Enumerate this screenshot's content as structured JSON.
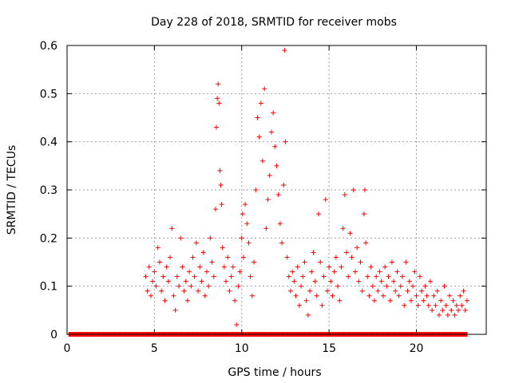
{
  "chart_data": {
    "type": "scatter",
    "title": "Day 228 of 2018, SRMTID for receiver mobs",
    "xlabel": "GPS time / hours",
    "ylabel": "SRMTID / TECUs",
    "xlim": [
      0,
      24
    ],
    "ylim": [
      0,
      0.6
    ],
    "x_ticks": [
      0,
      5,
      10,
      15,
      20
    ],
    "y_ticks": [
      0,
      0.1,
      0.2,
      0.3,
      0.4,
      0.5,
      0.6
    ],
    "x_tick_labels": [
      "0",
      "5",
      "10",
      "15",
      "20"
    ],
    "y_tick_labels": [
      "0",
      "0.1",
      "0.2",
      "0.3",
      "0.4",
      "0.5",
      "0.6"
    ],
    "grid": true,
    "marker": "+",
    "color": "#ff0000",
    "zero_band_x": [
      0.1,
      22.9
    ],
    "series": [
      {
        "name": "mobs",
        "points": [
          [
            4.5,
            0.12
          ],
          [
            4.6,
            0.09
          ],
          [
            4.7,
            0.14
          ],
          [
            4.8,
            0.08
          ],
          [
            4.9,
            0.11
          ],
          [
            5.0,
            0.13
          ],
          [
            5.1,
            0.1
          ],
          [
            5.2,
            0.18
          ],
          [
            5.3,
            0.15
          ],
          [
            5.4,
            0.09
          ],
          [
            5.5,
            0.12
          ],
          [
            5.6,
            0.07
          ],
          [
            5.7,
            0.14
          ],
          [
            5.8,
            0.11
          ],
          [
            5.9,
            0.16
          ],
          [
            6.0,
            0.22
          ],
          [
            6.1,
            0.08
          ],
          [
            6.2,
            0.05
          ],
          [
            6.3,
            0.12
          ],
          [
            6.4,
            0.1
          ],
          [
            6.5,
            0.2
          ],
          [
            6.6,
            0.14
          ],
          [
            6.7,
            0.09
          ],
          [
            6.8,
            0.11
          ],
          [
            6.9,
            0.07
          ],
          [
            7.0,
            0.13
          ],
          [
            7.1,
            0.1
          ],
          [
            7.2,
            0.16
          ],
          [
            7.3,
            0.12
          ],
          [
            7.4,
            0.19
          ],
          [
            7.5,
            0.09
          ],
          [
            7.6,
            0.14
          ],
          [
            7.7,
            0.11
          ],
          [
            7.8,
            0.17
          ],
          [
            7.9,
            0.08
          ],
          [
            8.0,
            0.13
          ],
          [
            8.1,
            0.1
          ],
          [
            8.2,
            0.2
          ],
          [
            8.3,
            0.15
          ],
          [
            8.4,
            0.12
          ],
          [
            8.5,
            0.26
          ],
          [
            8.55,
            0.43
          ],
          [
            8.6,
            0.49
          ],
          [
            8.65,
            0.52
          ],
          [
            8.7,
            0.48
          ],
          [
            8.75,
            0.34
          ],
          [
            8.8,
            0.31
          ],
          [
            8.85,
            0.27
          ],
          [
            8.9,
            0.18
          ],
          [
            9.0,
            0.14
          ],
          [
            9.1,
            0.11
          ],
          [
            9.2,
            0.16
          ],
          [
            9.3,
            0.09
          ],
          [
            9.4,
            0.12
          ],
          [
            9.5,
            0.14
          ],
          [
            9.6,
            0.07
          ],
          [
            9.7,
            0.02
          ],
          [
            9.8,
            0.1
          ],
          [
            9.9,
            0.13
          ],
          [
            10.0,
            0.2
          ],
          [
            10.05,
            0.25
          ],
          [
            10.1,
            0.16
          ],
          [
            10.2,
            0.27
          ],
          [
            10.3,
            0.23
          ],
          [
            10.4,
            0.19
          ],
          [
            10.5,
            0.12
          ],
          [
            10.6,
            0.08
          ],
          [
            10.7,
            0.15
          ],
          [
            10.8,
            0.3
          ],
          [
            10.9,
            0.45
          ],
          [
            11.0,
            0.41
          ],
          [
            11.1,
            0.48
          ],
          [
            11.2,
            0.36
          ],
          [
            11.3,
            0.51
          ],
          [
            11.4,
            0.22
          ],
          [
            11.5,
            0.28
          ],
          [
            11.6,
            0.33
          ],
          [
            11.7,
            0.42
          ],
          [
            11.8,
            0.46
          ],
          [
            11.9,
            0.39
          ],
          [
            12.0,
            0.35
          ],
          [
            12.1,
            0.29
          ],
          [
            12.2,
            0.23
          ],
          [
            12.3,
            0.19
          ],
          [
            12.4,
            0.31
          ],
          [
            12.45,
            0.59
          ],
          [
            12.5,
            0.4
          ],
          [
            12.6,
            0.16
          ],
          [
            12.7,
            0.12
          ],
          [
            12.8,
            0.09
          ],
          [
            12.9,
            0.13
          ],
          [
            13.0,
            0.11
          ],
          [
            13.1,
            0.08
          ],
          [
            13.2,
            0.14
          ],
          [
            13.3,
            0.06
          ],
          [
            13.4,
            0.1
          ],
          [
            13.5,
            0.12
          ],
          [
            13.6,
            0.15
          ],
          [
            13.7,
            0.07
          ],
          [
            13.8,
            0.04
          ],
          [
            13.9,
            0.09
          ],
          [
            14.0,
            0.13
          ],
          [
            14.1,
            0.17
          ],
          [
            14.2,
            0.11
          ],
          [
            14.3,
            0.08
          ],
          [
            14.4,
            0.25
          ],
          [
            14.5,
            0.15
          ],
          [
            14.6,
            0.06
          ],
          [
            14.7,
            0.12
          ],
          [
            14.8,
            0.28
          ],
          [
            14.9,
            0.09
          ],
          [
            15.0,
            0.14
          ],
          [
            15.1,
            0.11
          ],
          [
            15.2,
            0.08
          ],
          [
            15.3,
            0.13
          ],
          [
            15.4,
            0.16
          ],
          [
            15.5,
            0.1
          ],
          [
            15.6,
            0.07
          ],
          [
            15.7,
            0.14
          ],
          [
            15.8,
            0.22
          ],
          [
            15.9,
            0.29
          ],
          [
            16.0,
            0.17
          ],
          [
            16.1,
            0.12
          ],
          [
            16.2,
            0.21
          ],
          [
            16.3,
            0.16
          ],
          [
            16.4,
            0.3
          ],
          [
            16.5,
            0.13
          ],
          [
            16.6,
            0.18
          ],
          [
            16.7,
            0.11
          ],
          [
            16.8,
            0.15
          ],
          [
            16.9,
            0.09
          ],
          [
            17.0,
            0.25
          ],
          [
            17.05,
            0.3
          ],
          [
            17.1,
            0.19
          ],
          [
            17.2,
            0.12
          ],
          [
            17.3,
            0.08
          ],
          [
            17.4,
            0.14
          ],
          [
            17.5,
            0.1
          ],
          [
            17.6,
            0.07
          ],
          [
            17.7,
            0.12
          ],
          [
            17.8,
            0.09
          ],
          [
            17.9,
            0.13
          ],
          [
            18.0,
            0.11
          ],
          [
            18.1,
            0.08
          ],
          [
            18.2,
            0.14
          ],
          [
            18.3,
            0.1
          ],
          [
            18.4,
            0.12
          ],
          [
            18.5,
            0.07
          ],
          [
            18.6,
            0.15
          ],
          [
            18.7,
            0.11
          ],
          [
            18.8,
            0.09
          ],
          [
            18.9,
            0.13
          ],
          [
            19.0,
            0.08
          ],
          [
            19.1,
            0.1
          ],
          [
            19.2,
            0.12
          ],
          [
            19.3,
            0.06
          ],
          [
            19.4,
            0.15
          ],
          [
            19.5,
            0.09
          ],
          [
            19.6,
            0.11
          ],
          [
            19.7,
            0.07
          ],
          [
            19.8,
            0.1
          ],
          [
            19.9,
            0.13
          ],
          [
            20.0,
            0.08
          ],
          [
            20.1,
            0.06
          ],
          [
            20.2,
            0.12
          ],
          [
            20.3,
            0.09
          ],
          [
            20.4,
            0.07
          ],
          [
            20.5,
            0.1
          ],
          [
            20.6,
            0.08
          ],
          [
            20.7,
            0.06
          ],
          [
            20.8,
            0.11
          ],
          [
            20.9,
            0.05
          ],
          [
            21.0,
            0.08
          ],
          [
            21.1,
            0.06
          ],
          [
            21.2,
            0.09
          ],
          [
            21.3,
            0.04
          ],
          [
            21.4,
            0.07
          ],
          [
            21.5,
            0.05
          ],
          [
            21.6,
            0.1
          ],
          [
            21.7,
            0.06
          ],
          [
            21.8,
            0.04
          ],
          [
            21.9,
            0.08
          ],
          [
            22.0,
            0.05
          ],
          [
            22.1,
            0.07
          ],
          [
            22.2,
            0.04
          ],
          [
            22.3,
            0.06
          ],
          [
            22.4,
            0.05
          ],
          [
            22.5,
            0.08
          ],
          [
            22.6,
            0.06
          ],
          [
            22.7,
            0.09
          ],
          [
            22.8,
            0.05
          ],
          [
            22.9,
            0.07
          ]
        ]
      }
    ]
  }
}
